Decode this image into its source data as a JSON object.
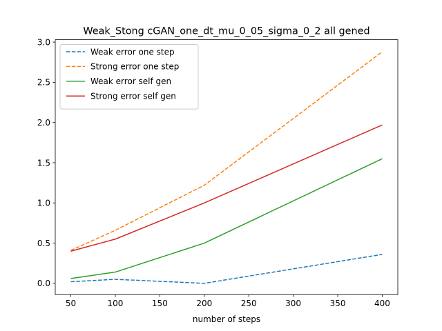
{
  "chart_data": {
    "type": "line",
    "title": "Weak_Stong cGAN_one_dt_mu_0_05_sigma_0_2 all gened",
    "xlabel": "number of steps",
    "ylabel": "",
    "x": [
      50,
      100,
      200,
      400
    ],
    "xlim": [
      32.5,
      417.5
    ],
    "ylim": [
      -0.14,
      3.03
    ],
    "xticks": [
      "50",
      "100",
      "150",
      "200",
      "250",
      "300",
      "350",
      "400"
    ],
    "yticks": [
      "0.0",
      "0.5",
      "1.0",
      "1.5",
      "2.0",
      "2.5",
      "3.0"
    ],
    "grid": false,
    "legend": "top-left",
    "series": [
      {
        "name": "Weak error one step",
        "values": [
          0.02,
          0.05,
          0.0,
          0.36
        ],
        "color": "#1f77b4",
        "dash": "dashed"
      },
      {
        "name": "Strong error one step",
        "values": [
          0.41,
          0.66,
          1.22,
          2.88
        ],
        "color": "#ff7f0e",
        "dash": "dashed"
      },
      {
        "name": "Weak error self gen",
        "values": [
          0.06,
          0.14,
          0.5,
          1.55
        ],
        "color": "#2ca02c",
        "dash": "solid"
      },
      {
        "name": "Strong error self gen",
        "values": [
          0.4,
          0.55,
          1.0,
          1.97
        ],
        "color": "#d62728",
        "dash": "solid"
      }
    ]
  }
}
